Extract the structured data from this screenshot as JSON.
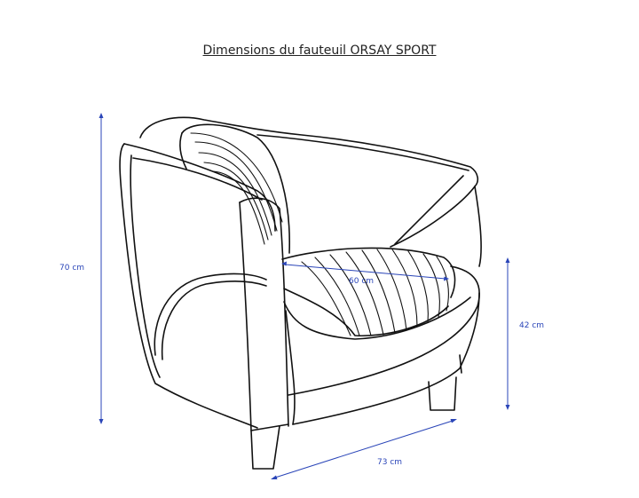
{
  "title": "Dimensions du fauteuil ORSAY SPORT",
  "dimensions": {
    "height_total": "70 cm",
    "seat_height": "42 cm",
    "width": "73 cm",
    "seat_depth": "60 cm"
  },
  "colors": {
    "dimension_lines": "#2a45b8",
    "outline": "#111111"
  }
}
